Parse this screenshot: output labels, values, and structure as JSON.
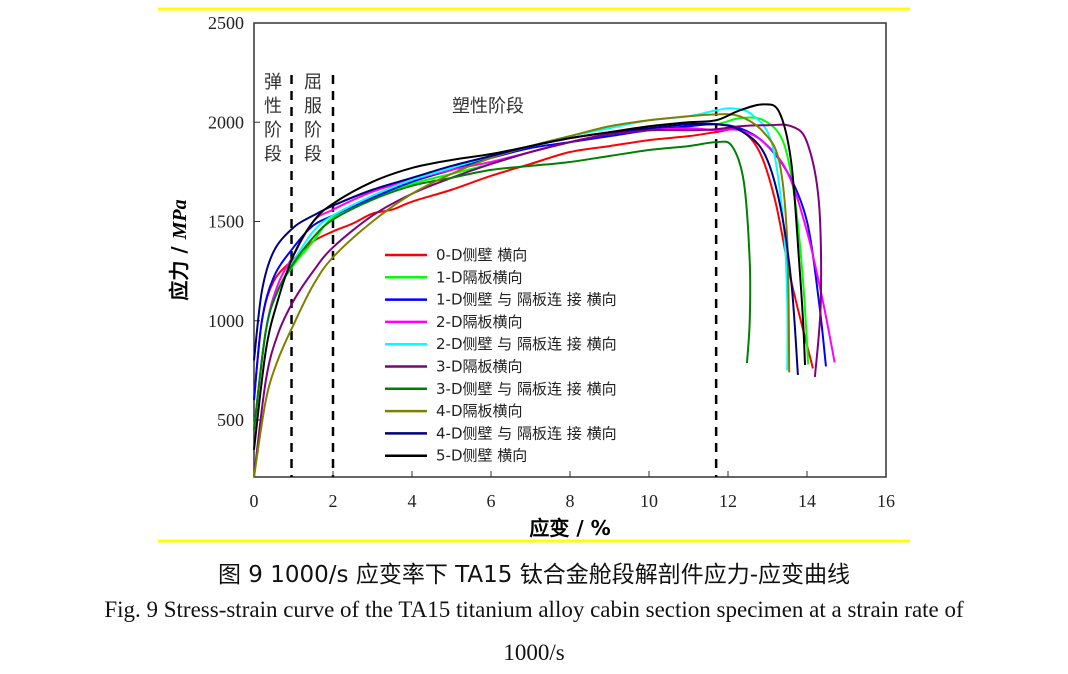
{
  "chart_data": {
    "type": "line",
    "xlabel": "应变 / %",
    "ylabel_prefix": "应力 / ",
    "ylabel_unit": "MPa",
    "xlim": [
      0,
      16
    ],
    "ylim": [
      213,
      2500
    ],
    "xticks": [
      "0",
      "2",
      "4",
      "6",
      "8",
      "10",
      "12",
      "14",
      "16"
    ],
    "yticks": [
      "500",
      "1000",
      "1500",
      "2000",
      "2500"
    ],
    "grid": false,
    "legend_position": "center",
    "stage_lines_x": [
      0.95,
      2.0,
      11.7
    ],
    "stage_labels": {
      "elastic": [
        "弹",
        "性",
        "阶",
        "段"
      ],
      "yield": [
        "屈",
        "服",
        "阶",
        "段"
      ],
      "plastic": "塑性阶段"
    },
    "series": [
      {
        "name": "0-D侧壁 横向",
        "color": "#ff0000",
        "points": [
          [
            0,
            600
          ],
          [
            0.2,
            1000
          ],
          [
            0.5,
            1200
          ],
          [
            1,
            1310
          ],
          [
            1.5,
            1400
          ],
          [
            2,
            1450
          ],
          [
            2.5,
            1490
          ],
          [
            3,
            1540
          ],
          [
            3.5,
            1560
          ],
          [
            4,
            1600
          ],
          [
            5,
            1660
          ],
          [
            6,
            1730
          ],
          [
            7,
            1790
          ],
          [
            8,
            1850
          ],
          [
            9,
            1880
          ],
          [
            10,
            1910
          ],
          [
            11,
            1930
          ],
          [
            11.7,
            1950
          ],
          [
            12.3,
            1960
          ],
          [
            12.8,
            1850
          ],
          [
            13.2,
            1600
          ],
          [
            13.6,
            1200
          ],
          [
            14.15,
            760
          ]
        ]
      },
      {
        "name": "1-D隔板横向",
        "color": "#00ff00",
        "points": [
          [
            0,
            450
          ],
          [
            0.3,
            950
          ],
          [
            0.6,
            1150
          ],
          [
            1,
            1280
          ],
          [
            1.5,
            1400
          ],
          [
            2,
            1520
          ],
          [
            3,
            1620
          ],
          [
            4,
            1690
          ],
          [
            5,
            1740
          ],
          [
            6,
            1790
          ],
          [
            7,
            1850
          ],
          [
            8,
            1900
          ],
          [
            9,
            1940
          ],
          [
            10,
            1970
          ],
          [
            11,
            1990
          ],
          [
            11.7,
            1990
          ],
          [
            12.3,
            2020
          ],
          [
            12.9,
            2010
          ],
          [
            13.4,
            1900
          ],
          [
            13.7,
            1600
          ],
          [
            13.9,
            1200
          ],
          [
            14.03,
            780
          ]
        ]
      },
      {
        "name": "1-D侧壁 与 隔板连 接  横向",
        "color": "#0000ff",
        "points": [
          [
            0,
            600
          ],
          [
            0.2,
            1000
          ],
          [
            0.5,
            1220
          ],
          [
            1,
            1370
          ],
          [
            1.5,
            1480
          ],
          [
            2,
            1530
          ],
          [
            3,
            1620
          ],
          [
            4,
            1700
          ],
          [
            5,
            1760
          ],
          [
            6,
            1820
          ],
          [
            7,
            1870
          ],
          [
            8,
            1900
          ],
          [
            9,
            1930
          ],
          [
            10,
            1960
          ],
          [
            11,
            1980
          ],
          [
            11.7,
            1990
          ],
          [
            12.3,
            1970
          ],
          [
            12.9,
            1900
          ],
          [
            13.5,
            1750
          ],
          [
            14,
            1500
          ],
          [
            14.3,
            1100
          ],
          [
            14.48,
            770
          ]
        ]
      },
      {
        "name": "2-D隔板横向",
        "color": "#ff00ff",
        "points": [
          [
            0,
            450
          ],
          [
            0.3,
            950
          ],
          [
            0.6,
            1180
          ],
          [
            1,
            1330
          ],
          [
            1.5,
            1500
          ],
          [
            2,
            1560
          ],
          [
            3,
            1650
          ],
          [
            4,
            1710
          ],
          [
            5,
            1760
          ],
          [
            6,
            1800
          ],
          [
            7,
            1850
          ],
          [
            8,
            1900
          ],
          [
            9,
            1940
          ],
          [
            10,
            1960
          ],
          [
            11,
            1970
          ],
          [
            11.7,
            1960
          ],
          [
            12.3,
            1960
          ],
          [
            12.9,
            1900
          ],
          [
            13.5,
            1750
          ],
          [
            14,
            1450
          ],
          [
            14.4,
            1100
          ],
          [
            14.7,
            790
          ]
        ]
      },
      {
        "name": "2-D侧壁 与 隔板连 接  横向",
        "color": "#00ffff",
        "points": [
          [
            0,
            450
          ],
          [
            0.3,
            950
          ],
          [
            0.6,
            1150
          ],
          [
            1,
            1300
          ],
          [
            1.5,
            1450
          ],
          [
            2,
            1530
          ],
          [
            3,
            1630
          ],
          [
            4,
            1710
          ],
          [
            5,
            1770
          ],
          [
            6,
            1830
          ],
          [
            7,
            1880
          ],
          [
            8,
            1930
          ],
          [
            9,
            1970
          ],
          [
            10,
            2010
          ],
          [
            11,
            2030
          ],
          [
            11.7,
            2060
          ],
          [
            12.1,
            2070
          ],
          [
            12.6,
            2040
          ],
          [
            13.1,
            1900
          ],
          [
            13.4,
            1500
          ],
          [
            13.5,
            1100
          ],
          [
            13.5,
            750
          ]
        ]
      },
      {
        "name": "3-D隔板横向",
        "color": "#800080",
        "points": [
          [
            0,
            213
          ],
          [
            0.3,
            700
          ],
          [
            0.6,
            930
          ],
          [
            1,
            1100
          ],
          [
            1.5,
            1250
          ],
          [
            2,
            1370
          ],
          [
            3,
            1530
          ],
          [
            4,
            1640
          ],
          [
            5,
            1720
          ],
          [
            6,
            1790
          ],
          [
            7,
            1850
          ],
          [
            8,
            1900
          ],
          [
            9,
            1940
          ],
          [
            10,
            1960
          ],
          [
            11,
            1960
          ],
          [
            11.7,
            1965
          ],
          [
            12.3,
            1980
          ],
          [
            13,
            1985
          ],
          [
            13.6,
            1980
          ],
          [
            14,
            1900
          ],
          [
            14.3,
            1600
          ],
          [
            14.35,
            1100
          ],
          [
            14.2,
            717
          ]
        ]
      },
      {
        "name": "3-D侧壁 与 隔板连 接  横向",
        "color": "#008000",
        "points": [
          [
            0,
            450
          ],
          [
            0.3,
            950
          ],
          [
            0.6,
            1150
          ],
          [
            1,
            1290
          ],
          [
            1.5,
            1420
          ],
          [
            2,
            1510
          ],
          [
            3,
            1610
          ],
          [
            4,
            1680
          ],
          [
            5,
            1720
          ],
          [
            6,
            1760
          ],
          [
            7,
            1780
          ],
          [
            8,
            1800
          ],
          [
            9,
            1830
          ],
          [
            10,
            1860
          ],
          [
            11,
            1880
          ],
          [
            11.7,
            1900
          ],
          [
            12.1,
            1880
          ],
          [
            12.4,
            1700
          ],
          [
            12.55,
            1300
          ],
          [
            12.55,
            1000
          ],
          [
            12.48,
            787
          ]
        ]
      },
      {
        "name": "4-D隔板横向",
        "color": "#808000",
        "points": [
          [
            0,
            213
          ],
          [
            0.3,
            600
          ],
          [
            0.6,
            800
          ],
          [
            1,
            980
          ],
          [
            1.5,
            1180
          ],
          [
            2,
            1320
          ],
          [
            3,
            1500
          ],
          [
            4,
            1640
          ],
          [
            5,
            1740
          ],
          [
            6,
            1820
          ],
          [
            7,
            1880
          ],
          [
            8,
            1930
          ],
          [
            9,
            1980
          ],
          [
            10,
            2010
          ],
          [
            11,
            2030
          ],
          [
            11.7,
            2040
          ],
          [
            12.3,
            2030
          ],
          [
            12.9,
            1950
          ],
          [
            13.3,
            1800
          ],
          [
            13.5,
            1400
          ],
          [
            13.55,
            740
          ]
        ]
      },
      {
        "name": "4-D侧壁 与 隔板连 接  横向",
        "color": "#000080",
        "points": [
          [
            0,
            800
          ],
          [
            0.2,
            1150
          ],
          [
            0.5,
            1350
          ],
          [
            1,
            1470
          ],
          [
            1.5,
            1530
          ],
          [
            2,
            1580
          ],
          [
            3,
            1660
          ],
          [
            4,
            1720
          ],
          [
            5,
            1780
          ],
          [
            6,
            1830
          ],
          [
            7,
            1880
          ],
          [
            8,
            1920
          ],
          [
            9,
            1950
          ],
          [
            10,
            1970
          ],
          [
            11,
            1990
          ],
          [
            11.7,
            1990
          ],
          [
            12.3,
            1960
          ],
          [
            12.9,
            1850
          ],
          [
            13.3,
            1600
          ],
          [
            13.6,
            1200
          ],
          [
            13.77,
            727
          ]
        ]
      },
      {
        "name": "5-D侧壁 横向",
        "color": "#000000",
        "points": [
          [
            0,
            350
          ],
          [
            0.3,
            850
          ],
          [
            0.6,
            1100
          ],
          [
            1,
            1330
          ],
          [
            1.5,
            1500
          ],
          [
            2,
            1590
          ],
          [
            3,
            1700
          ],
          [
            4,
            1770
          ],
          [
            5,
            1810
          ],
          [
            6,
            1840
          ],
          [
            7,
            1880
          ],
          [
            8,
            1920
          ],
          [
            9,
            1950
          ],
          [
            10,
            1980
          ],
          [
            11,
            2000
          ],
          [
            11.7,
            2010
          ],
          [
            12.3,
            2060
          ],
          [
            12.9,
            2090
          ],
          [
            13.3,
            2050
          ],
          [
            13.6,
            1800
          ],
          [
            13.8,
            1300
          ],
          [
            13.9,
            1000
          ],
          [
            13.95,
            777
          ]
        ]
      }
    ]
  },
  "caption": {
    "cn": "图 9    1000/s 应变率下 TA15 钛合金舱段解剖件应力-应变曲线",
    "en_line1": "Fig. 9 Stress-strain curve of the TA15 titanium alloy cabin section specimen at a strain rate of",
    "en_line2": "1000/s"
  },
  "colors": {
    "frame": "#ffff00"
  }
}
